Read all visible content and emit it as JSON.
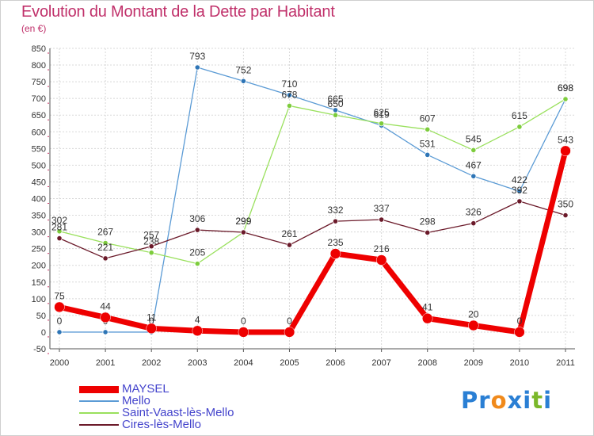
{
  "header": {
    "title": "Evolution du Montant de la Dette par Habitant",
    "unit": "(en €)"
  },
  "logo": {
    "text": "Proxiti",
    "letters": [
      "P",
      "r",
      "o",
      "x",
      "i",
      "t",
      "i"
    ],
    "colors": [
      "#2a7fd4",
      "#2a7fd4",
      "#f08a1c",
      "#2a7fd4",
      "#2a7fd4",
      "#7bb82a",
      "#2a7fd4"
    ]
  },
  "legend": [
    {
      "name": "MAYSEL",
      "color": "#ee0000"
    },
    {
      "name": "Mello",
      "color": "#5b9bd5"
    },
    {
      "name": "Saint-Vaast-lès-Mello",
      "color": "#99e05c"
    },
    {
      "name": "Cires-lès-Mello",
      "color": "#6b1a2a"
    }
  ],
  "chart_data": {
    "type": "line",
    "title": "Evolution du Montant de la Dette par Habitant",
    "subtitle": "(en €)",
    "x": [
      "2000",
      "2001",
      "2002",
      "2003",
      "2004",
      "2005",
      "2006",
      "2007",
      "2008",
      "2009",
      "2010",
      "2011"
    ],
    "ylim": [
      -50,
      850
    ],
    "yticks": [
      -50,
      0,
      50,
      100,
      150,
      200,
      250,
      300,
      350,
      400,
      450,
      500,
      550,
      600,
      650,
      700,
      750,
      800,
      850
    ],
    "grid": true,
    "legend_position": "bottom-left",
    "series": [
      {
        "name": "MAYSEL",
        "color": "#ee0000",
        "marker": "#ee0000",
        "width": 7,
        "values": [
          75,
          44,
          11,
          4,
          0,
          0,
          235,
          216,
          41,
          20,
          0,
          543
        ]
      },
      {
        "name": "Mello",
        "color": "#5b9bd5",
        "marker": "#2e75b6",
        "width": 1.3,
        "values": [
          0,
          0,
          0,
          793,
          752,
          710,
          665,
          619,
          531,
          467,
          422,
          698
        ]
      },
      {
        "name": "Saint-Vaast-lès-Mello",
        "color": "#99e05c",
        "marker": "#7dcc3c",
        "width": 1.3,
        "values": [
          302,
          267,
          238,
          205,
          299,
          678,
          650,
          625,
          607,
          545,
          615,
          698
        ]
      },
      {
        "name": "Cires-lès-Mello",
        "color": "#6b1a2a",
        "marker": "#6b1a2a",
        "width": 1.3,
        "values": [
          281,
          221,
          257,
          306,
          299,
          261,
          332,
          337,
          298,
          326,
          392,
          350
        ]
      }
    ]
  }
}
